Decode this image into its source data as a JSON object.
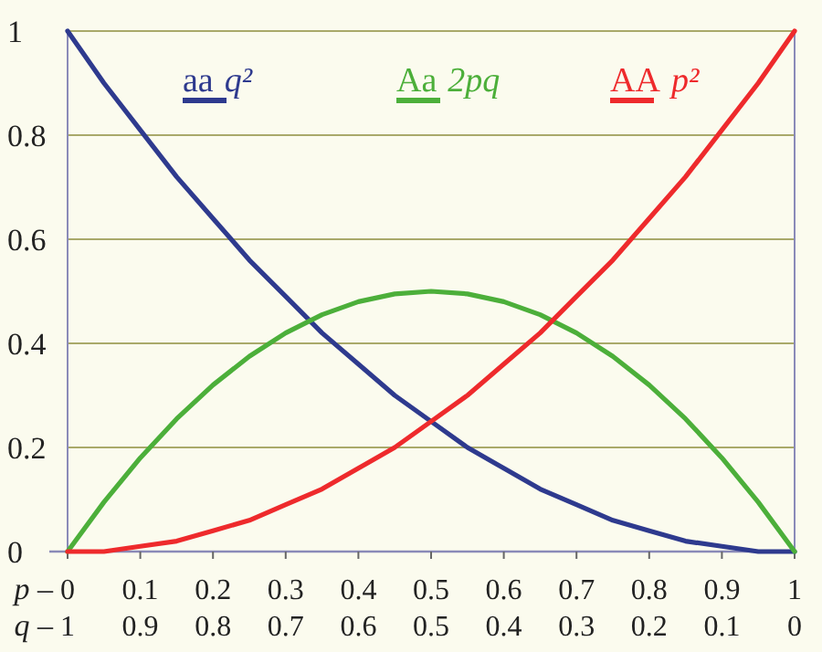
{
  "chart_data": {
    "type": "line",
    "x": [
      0,
      0.05,
      0.1,
      0.15,
      0.2,
      0.25,
      0.3,
      0.35,
      0.4,
      0.45,
      0.5,
      0.55,
      0.6,
      0.65,
      0.7,
      0.75,
      0.8,
      0.85,
      0.9,
      0.95,
      1
    ],
    "series": [
      {
        "name": "aa q²",
        "color": "#2e3a8e",
        "values": [
          1,
          0.9,
          0.81,
          0.72,
          0.64,
          0.56,
          0.49,
          0.42,
          0.36,
          0.3,
          0.25,
          0.2,
          0.16,
          0.12,
          0.09,
          0.06,
          0.04,
          0.02,
          0.01,
          0,
          0
        ]
      },
      {
        "name": "Aa 2pq",
        "color": "#4caf3a",
        "values": [
          0,
          0.095,
          0.18,
          0.255,
          0.32,
          0.375,
          0.42,
          0.455,
          0.48,
          0.495,
          0.5,
          0.495,
          0.48,
          0.455,
          0.42,
          0.375,
          0.32,
          0.255,
          0.18,
          0.095,
          0
        ]
      },
      {
        "name": "AA p²",
        "color": "#ee2a2c",
        "values": [
          0,
          0,
          0.01,
          0.02,
          0.04,
          0.06,
          0.09,
          0.12,
          0.16,
          0.2,
          0.25,
          0.3,
          0.36,
          0.42,
          0.49,
          0.56,
          0.64,
          0.72,
          0.81,
          0.9,
          1
        ]
      }
    ],
    "xlabel": "p –",
    "x2label": "q –",
    "xlim": [
      0,
      1
    ],
    "xticks": [
      0,
      0.1,
      0.2,
      0.3,
      0.4,
      0.5,
      0.6,
      0.7,
      0.8,
      0.9,
      1
    ],
    "x2lim": [
      1,
      0
    ],
    "x2ticks": [
      1,
      0.9,
      0.8,
      0.7,
      0.6,
      0.5,
      0.4,
      0.3,
      0.2,
      0.1,
      0
    ],
    "ylim": [
      0,
      1
    ],
    "yticks": [
      0,
      0.2,
      0.4,
      0.6,
      0.8,
      1
    ],
    "grid": "y",
    "legend": "top",
    "marker": "none",
    "line_style": "solid"
  }
}
